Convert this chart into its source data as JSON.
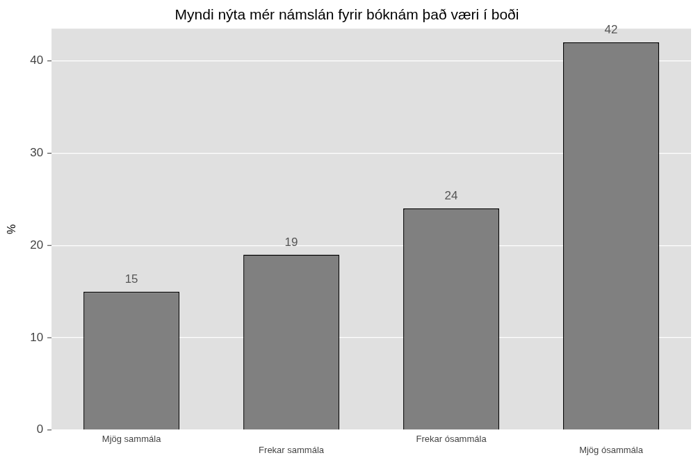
{
  "chart_data": {
    "type": "bar",
    "title": "Myndi nýta mér námslán fyrir bóknám það væri í boði",
    "ylabel": "%",
    "categories": [
      "Mjög sammála",
      "Frekar sammála",
      "Frekar ósammála",
      "Mjög ósammála"
    ],
    "values": [
      15,
      19,
      24,
      42
    ],
    "color": "#808080",
    "data_labels": true,
    "ylim": [
      0,
      43.5
    ],
    "yticks": [
      0,
      10,
      20,
      30,
      40
    ],
    "grid": "y",
    "legend": false
  }
}
